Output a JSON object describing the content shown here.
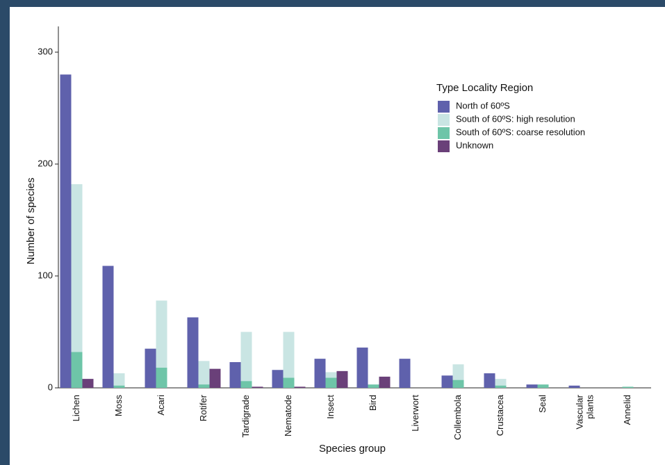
{
  "chart_data": {
    "type": "bar",
    "xlabel": "Species group",
    "ylabel": "Number of species",
    "legend_title": "Type Locality Region",
    "legend": "top-right",
    "categories": [
      "Lichen",
      "Moss",
      "Acari",
      "Rotifer",
      "Tardigrade",
      "Nematode",
      "Insect",
      "Bird",
      "Liverwort",
      "Collembola",
      "Crustacea",
      "Seal",
      "Vascular\nplants",
      "Annelid"
    ],
    "series": [
      {
        "name": "North of 60ºS",
        "color": "#5f61ac",
        "values": [
          280,
          109,
          35,
          63,
          23,
          16,
          26,
          36,
          26,
          11,
          13,
          3,
          2,
          0
        ]
      },
      {
        "name": "South of 60ºS: high resolution",
        "color": "#c9e5e3",
        "values": [
          182,
          13,
          78,
          24,
          50,
          50,
          14,
          0,
          0,
          21,
          8,
          0,
          0,
          0
        ]
      },
      {
        "name": "South of 60ºS: coarse resolution",
        "color": "#6ec5a8",
        "values": [
          32,
          2,
          18,
          3,
          6,
          9,
          9,
          3,
          0,
          7,
          2,
          3,
          0,
          1
        ]
      },
      {
        "name": "Unknown",
        "color": "#6a4079",
        "values": [
          8,
          0,
          0,
          17,
          1,
          1,
          15,
          10,
          0,
          0,
          0,
          0,
          0,
          0
        ]
      }
    ],
    "ylim": [
      0,
      323
    ],
    "yticks": [
      0,
      100,
      200,
      300
    ]
  }
}
